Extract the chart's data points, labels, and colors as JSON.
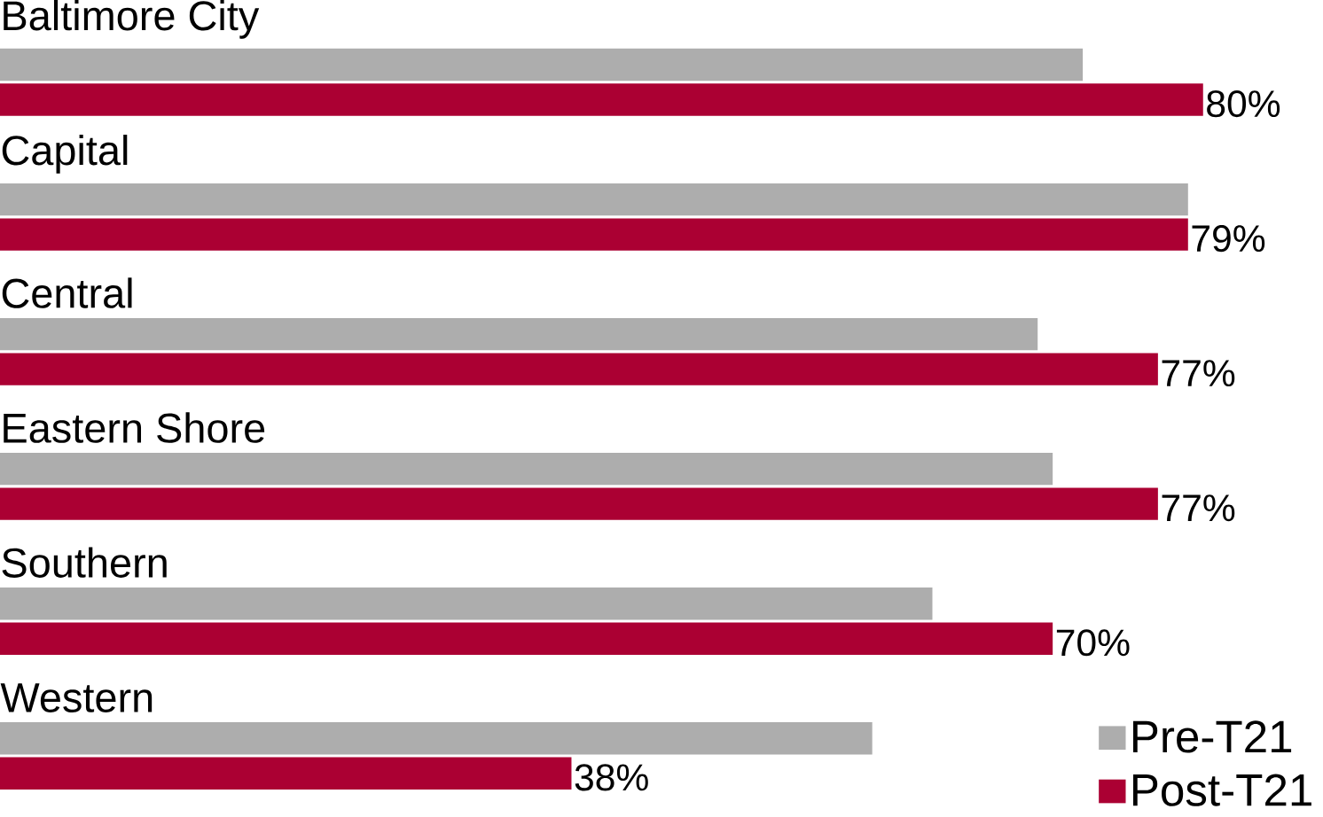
{
  "chart_data": {
    "type": "bar",
    "orientation": "horizontal",
    "categories": [
      "Baltimore City",
      "Capital",
      "Central",
      "Eastern Shore",
      "Southern",
      "Western"
    ],
    "series": [
      {
        "name": "Pre-T21",
        "color": "#adadad",
        "values": [
          72,
          79,
          69,
          70,
          62,
          58
        ]
      },
      {
        "name": "Post-T21",
        "color": "#ab0033",
        "values": [
          80,
          79,
          77,
          77,
          70,
          38
        ],
        "value_labels": [
          "80%",
          "79%",
          "77%",
          "77%",
          "70%",
          "38%"
        ]
      }
    ],
    "legend": "bottom right"
  }
}
